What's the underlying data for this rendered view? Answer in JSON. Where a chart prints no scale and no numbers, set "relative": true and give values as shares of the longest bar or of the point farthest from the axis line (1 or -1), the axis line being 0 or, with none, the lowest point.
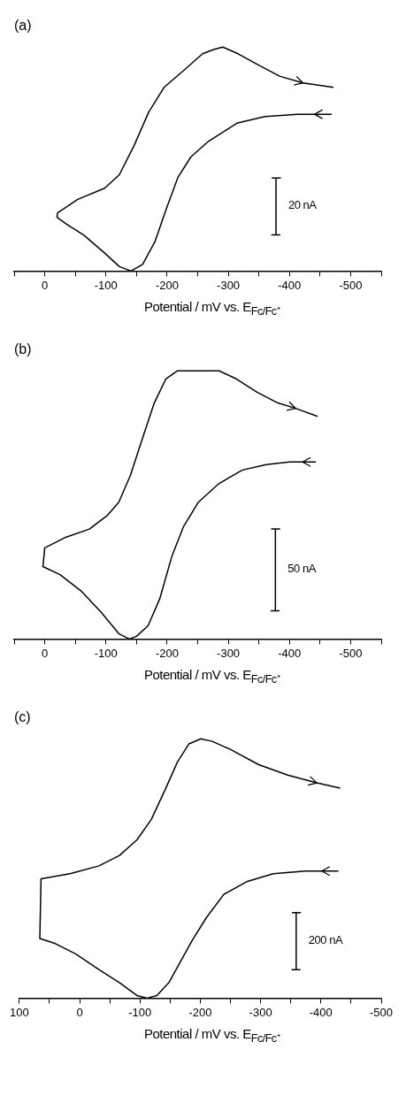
{
  "chart_data": [
    {
      "type": "line",
      "title": "(a)",
      "xlabel": "Potential / mV vs. E$_{Fc/Fc⁺}$",
      "relative": true,
      "marker": "none",
      "line_style": "solid",
      "grid": false,
      "legend": false,
      "annotations": [
        {
          "text": "20 nA",
          "x": -378,
          "y": 0.29
        }
      ],
      "xlim": [
        50,
        -550
      ],
      "xticks": [
        {
          "value": 50,
          "label": null
        },
        0,
        {
          "value": -50,
          "label": null
        },
        -100,
        {
          "value": -150,
          "label": null
        },
        -200,
        {
          "value": -250,
          "label": null
        },
        -300,
        {
          "value": -350,
          "label": null
        },
        -400,
        {
          "value": -450,
          "label": null
        },
        -500,
        {
          "value": -550,
          "label": null
        }
      ],
      "series": [
        {
          "color": "#000000",
          "x": [
            -469,
            -413,
            -360,
            -314,
            -268,
            -239,
            -218,
            -199,
            -180,
            -160,
            -141,
            -122,
            -98,
            -64,
            -35,
            -20,
            -21,
            -54,
            -98,
            -122,
            -146,
            -170,
            -195,
            -229,
            -258,
            -277,
            -291,
            -316,
            -349,
            -384,
            -422,
            -472
          ],
          "values": [
            0.7,
            0.7,
            0.69,
            0.66,
            0.58,
            0.51,
            0.42,
            0.28,
            0.13,
            0.03,
            0,
            0.02,
            0.08,
            0.16,
            0.21,
            0.24,
            0.26,
            0.32,
            0.37,
            0.43,
            0.56,
            0.71,
            0.82,
            0.9,
            0.97,
            0.99,
            1,
            0.97,
            0.92,
            0.87,
            0.84,
            0.82
          ]
        },
        {
          "color": "#000000",
          "x": [
            -371,
            -385,
            -378,
            -378,
            -371,
            -385
          ],
          "values": [
            0.415,
            0.415,
            0.415,
            0.162,
            0.162,
            0.162
          ]
        }
      ]
    },
    {
      "type": "line",
      "title": "(b)",
      "xlabel": "Potential / mV vs. E$_{Fc/Fc⁺}$",
      "relative": true,
      "marker": "none",
      "line_style": "solid",
      "grid": false,
      "legend": false,
      "annotations": [
        {
          "text": "50 nA",
          "x": -377,
          "y": 0.26
        }
      ],
      "xlim": [
        50,
        -550
      ],
      "xticks": [
        {
          "value": 50,
          "label": null
        },
        0,
        {
          "value": -50,
          "label": null
        },
        -100,
        {
          "value": -150,
          "label": null
        },
        -200,
        {
          "value": -250,
          "label": null
        },
        -300,
        {
          "value": -350,
          "label": null
        },
        -400,
        {
          "value": -450,
          "label": null
        },
        -500,
        {
          "value": -550,
          "label": null
        }
      ],
      "series": [
        {
          "color": "#000000",
          "x": [
            -443,
            -400,
            -362,
            -323,
            -285,
            -251,
            -227,
            -208,
            -188,
            -169,
            -150,
            -138,
            -121,
            -92,
            -59,
            -25,
            3,
            0,
            -35,
            -73,
            -102,
            -121,
            -140,
            -160,
            -179,
            -198,
            -217,
            -251,
            -285,
            -313,
            -347,
            -381,
            -410,
            -446
          ],
          "values": [
            0.66,
            0.66,
            0.65,
            0.63,
            0.58,
            0.51,
            0.42,
            0.31,
            0.15,
            0.05,
            0.01,
            0,
            0.02,
            0.1,
            0.18,
            0.24,
            0.27,
            0.34,
            0.38,
            0.41,
            0.46,
            0.51,
            0.61,
            0.75,
            0.88,
            0.97,
            1,
            1,
            1,
            0.97,
            0.92,
            0.88,
            0.86,
            0.83
          ]
        },
        {
          "color": "#000000",
          "x": [
            -370,
            -384,
            -377,
            -377,
            -370,
            -384
          ],
          "values": [
            0.41,
            0.41,
            0.41,
            0.105,
            0.105,
            0.105
          ]
        }
      ]
    },
    {
      "type": "line",
      "title": "(c)",
      "xlabel": "Potential / mV vs. E$_{Fc/Fc⁺}$",
      "relative": true,
      "marker": "none",
      "line_style": "solid",
      "grid": false,
      "legend": false,
      "annotations": [
        {
          "text": "200 nA",
          "x": -359,
          "y": 0.22
        }
      ],
      "xlim": [
        100,
        -500
      ],
      "xticks": [
        100,
        {
          "value": 50,
          "label": null
        },
        0,
        {
          "value": -50,
          "label": null
        },
        -100,
        {
          "value": -150,
          "label": null
        },
        -200,
        {
          "value": -250,
          "label": null
        },
        -300,
        {
          "value": -350,
          "label": null
        },
        -400,
        {
          "value": -450,
          "label": null
        },
        -500
      ],
      "series": [
        {
          "color": "#000000",
          "x": [
            -429,
            -374,
            -321,
            -278,
            -239,
            -210,
            -186,
            -167,
            -148,
            -128,
            -112,
            -95,
            -66,
            -32,
            6,
            40,
            66,
            64,
            16,
            -32,
            -66,
            -95,
            -119,
            -143,
            -162,
            -181,
            -201,
            -220,
            -249,
            -297,
            -345,
            -393,
            -432
          ],
          "values": [
            0.49,
            0.49,
            0.48,
            0.45,
            0.4,
            0.31,
            0.22,
            0.14,
            0.06,
            0.01,
            0,
            0.01,
            0.06,
            0.11,
            0.17,
            0.21,
            0.23,
            0.46,
            0.48,
            0.51,
            0.55,
            0.61,
            0.69,
            0.81,
            0.91,
            0.98,
            1,
            0.99,
            0.96,
            0.9,
            0.86,
            0.83,
            0.81
          ]
        },
        {
          "color": "#000000",
          "x": [
            -352,
            -366,
            -359,
            -359,
            -352,
            -366
          ],
          "values": [
            0.33,
            0.33,
            0.33,
            0.11,
            0.11,
            0.11
          ]
        }
      ]
    }
  ]
}
